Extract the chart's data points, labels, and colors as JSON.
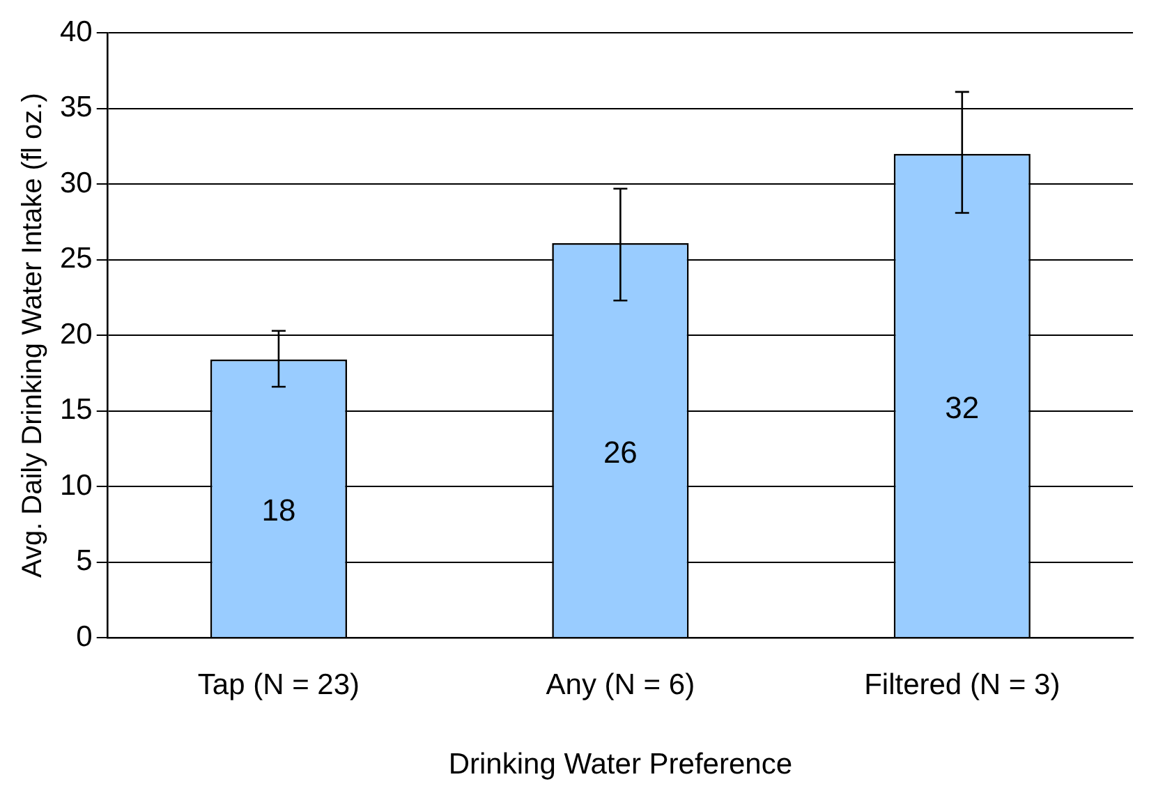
{
  "chart_data": {
    "type": "bar",
    "xlabel": "Drinking Water Preference",
    "ylabel": "Avg. Daily Drinking Water Intake (fl oz.)",
    "categories": [
      "Tap (N = 23)",
      "Any (N = 6)",
      "Filtered (N = 3)"
    ],
    "values": [
      18.4,
      26.1,
      32
    ],
    "errors": [
      [
        16.6,
        20.3
      ],
      [
        22.3,
        29.7
      ],
      [
        28.1,
        36.1
      ]
    ],
    "value_labels": [
      "18",
      "26",
      "32"
    ],
    "color": "#99ccff",
    "ylim": [
      0,
      40
    ],
    "yticks": [
      0,
      5,
      10,
      15,
      20,
      25,
      30,
      35,
      40
    ],
    "grid": "y",
    "legend": false
  }
}
